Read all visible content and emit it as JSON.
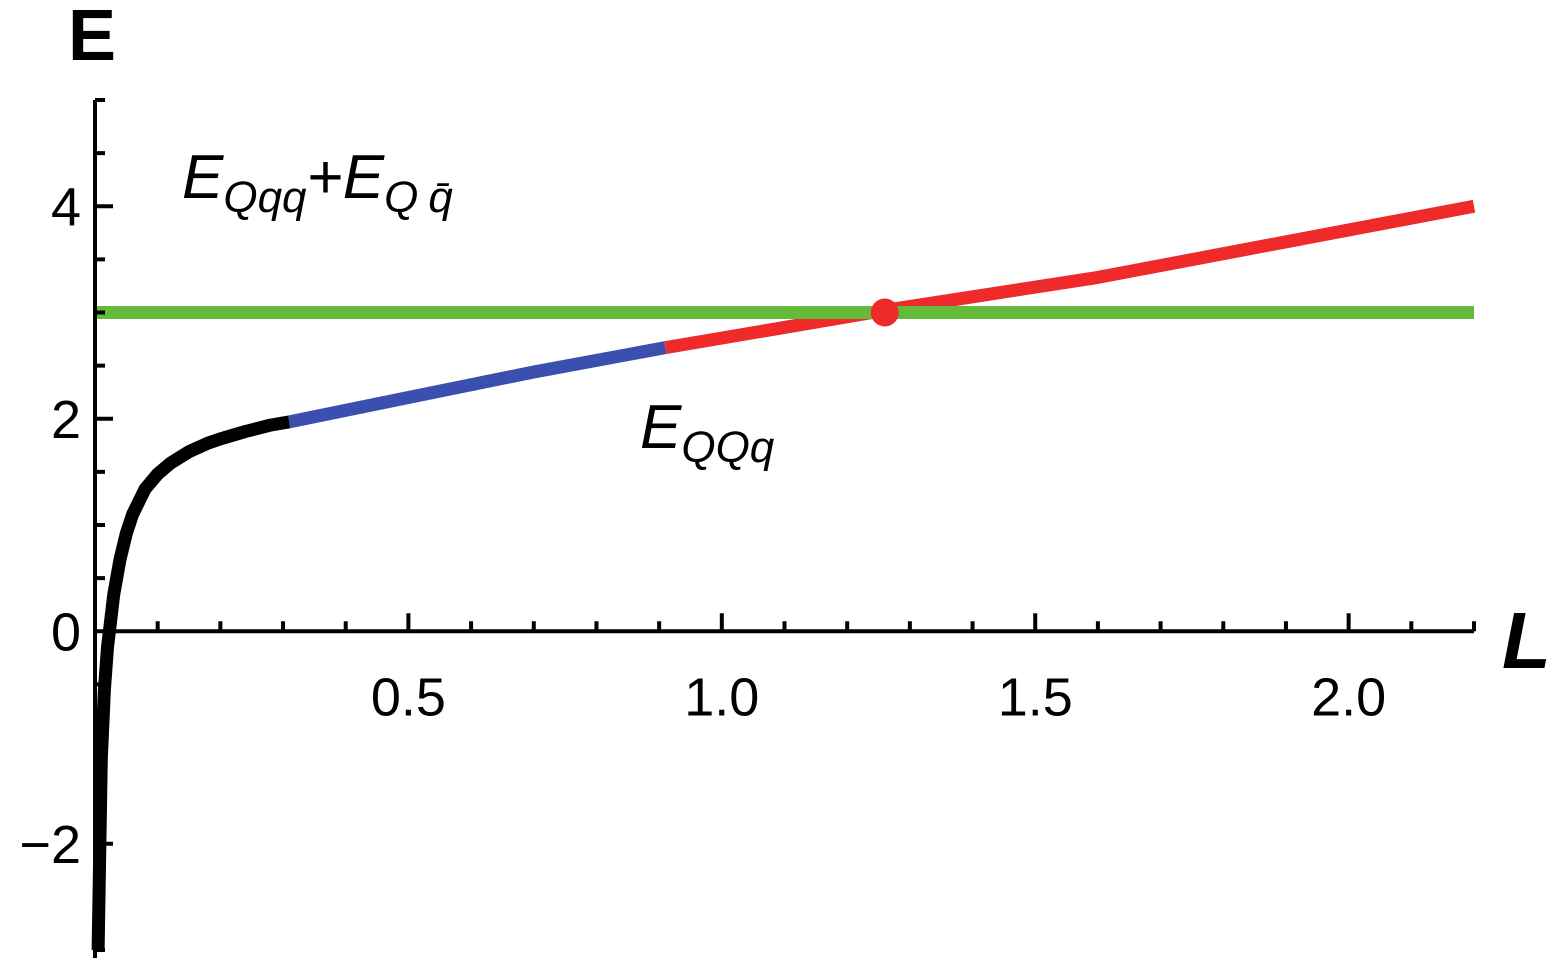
{
  "chart_data": {
    "type": "line",
    "xlabel": "L",
    "ylabel": "E",
    "xlim": [
      0,
      2.2
    ],
    "ylim": [
      -3,
      5
    ],
    "x_ticks": [
      {
        "value": 0.5,
        "label": "0.5"
      },
      {
        "value": 1.0,
        "label": "1.0"
      },
      {
        "value": 1.5,
        "label": "1.5"
      },
      {
        "value": 2.0,
        "label": "2.0"
      }
    ],
    "y_ticks": [
      {
        "value": -2,
        "label": "−2"
      },
      {
        "value": 0,
        "label": "0"
      },
      {
        "value": 2,
        "label": "2"
      },
      {
        "value": 4,
        "label": "4"
      }
    ],
    "grid": false,
    "series": [
      {
        "color": "#000000",
        "x": [
          0.005,
          0.01,
          0.015,
          0.02,
          0.03,
          0.04,
          0.05,
          0.06,
          0.08,
          0.1,
          0.12,
          0.15,
          0.18,
          0.2,
          0.24,
          0.28,
          0.31
        ],
        "y": [
          -3.0,
          -1.2,
          -0.55,
          -0.15,
          0.35,
          0.68,
          0.92,
          1.1,
          1.34,
          1.48,
          1.58,
          1.69,
          1.77,
          1.81,
          1.88,
          1.94,
          1.97
        ]
      },
      {
        "color": "#3a4fae",
        "x": [
          0.31,
          0.5,
          0.7,
          0.91
        ],
        "y": [
          1.97,
          2.2,
          2.44,
          2.67
        ]
      },
      {
        "color": "#ee2a2a",
        "x": [
          0.91,
          1.26,
          1.6,
          2.2
        ],
        "y": [
          2.67,
          3.02,
          3.33,
          4.0
        ]
      },
      {
        "color": "#64bb3a",
        "x": [
          0,
          2.2
        ],
        "y": [
          3.0,
          3.0
        ]
      }
    ],
    "points": [
      {
        "x": 1.26,
        "y": 3.0,
        "color": "#ee2a2a"
      }
    ],
    "annotations": [
      {
        "main": "E",
        "sub1": "Qqq",
        "plus": "+",
        "main2": "E",
        "sub2": "Q",
        "sub3": "q̄"
      },
      {
        "main": "E",
        "sub1": "QQq"
      }
    ]
  }
}
